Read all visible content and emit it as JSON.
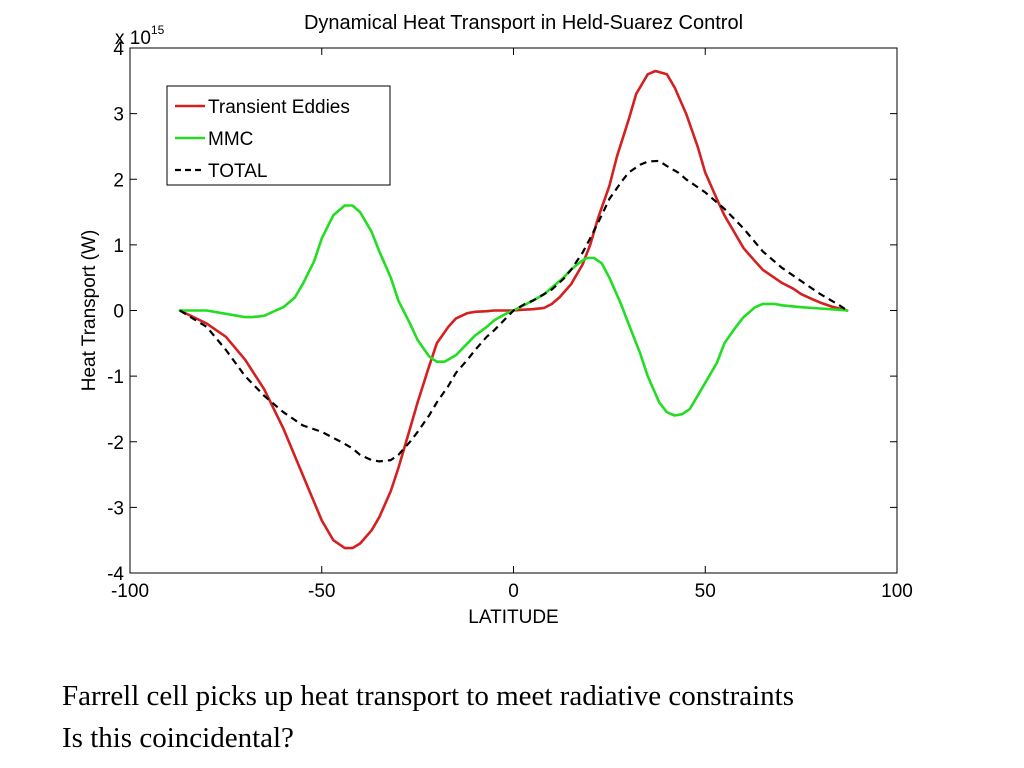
{
  "chart_data": {
    "type": "line",
    "title": "Dynamical Heat Transport in Held-Suarez Control",
    "xlabel": "LATITUDE",
    "ylabel": "Heat Transport (W)",
    "y_multiplier_label": "x 10",
    "y_multiplier_exponent": "15",
    "xlim": [
      -100,
      100
    ],
    "ylim": [
      -4,
      4
    ],
    "x_ticks": [
      -100,
      -50,
      0,
      50,
      100
    ],
    "y_ticks": [
      -4,
      -3,
      -2,
      -1,
      0,
      1,
      2,
      3,
      4
    ],
    "grid": false,
    "legend_position": "top-left",
    "series": [
      {
        "name": "Transient Eddies",
        "color": "#d42020",
        "dash": "solid",
        "x": [
          -87,
          -80,
          -75,
          -70,
          -65,
          -60,
          -55,
          -50,
          -47,
          -44,
          -42,
          -40,
          -37,
          -35,
          -32,
          -30,
          -27,
          -25,
          -22,
          -20,
          -17,
          -15,
          -12,
          -10,
          -7,
          -5,
          -2,
          0,
          2,
          5,
          8,
          10,
          12,
          15,
          18,
          20,
          22,
          25,
          27,
          30,
          32,
          35,
          37,
          40,
          42,
          45,
          48,
          50,
          53,
          55,
          58,
          60,
          63,
          65,
          68,
          70,
          73,
          75,
          78,
          80,
          83,
          85,
          87
        ],
        "y": [
          0,
          -0.2,
          -0.4,
          -0.75,
          -1.2,
          -1.8,
          -2.5,
          -3.2,
          -3.5,
          -3.62,
          -3.62,
          -3.55,
          -3.35,
          -3.15,
          -2.75,
          -2.4,
          -1.8,
          -1.4,
          -0.85,
          -0.5,
          -0.25,
          -0.12,
          -0.04,
          -0.02,
          -0.01,
          0,
          0,
          0,
          0.01,
          0.02,
          0.04,
          0.1,
          0.2,
          0.4,
          0.7,
          1.0,
          1.4,
          1.9,
          2.35,
          2.9,
          3.3,
          3.6,
          3.65,
          3.6,
          3.4,
          3.0,
          2.5,
          2.1,
          1.7,
          1.45,
          1.15,
          0.95,
          0.75,
          0.62,
          0.5,
          0.42,
          0.33,
          0.25,
          0.17,
          0.12,
          0.06,
          0.03,
          0
        ]
      },
      {
        "name": "MMC",
        "color": "#22dd22",
        "dash": "solid",
        "x": [
          -87,
          -80,
          -75,
          -72,
          -70,
          -68,
          -65,
          -62,
          -60,
          -57,
          -55,
          -52,
          -50,
          -47,
          -44,
          -42,
          -40,
          -37,
          -35,
          -32,
          -30,
          -27,
          -25,
          -22,
          -20,
          -18,
          -15,
          -12,
          -10,
          -7,
          -5,
          -2,
          0,
          2,
          5,
          8,
          10,
          13,
          15,
          17,
          19,
          21,
          23,
          25,
          28,
          30,
          33,
          35,
          38,
          40,
          42,
          44,
          46,
          48,
          50,
          53,
          55,
          58,
          60,
          63,
          65,
          68,
          70,
          75,
          80,
          85,
          87
        ],
        "y": [
          0,
          0,
          -0.05,
          -0.08,
          -0.1,
          -0.1,
          -0.08,
          0,
          0.05,
          0.2,
          0.4,
          0.75,
          1.1,
          1.45,
          1.6,
          1.6,
          1.5,
          1.2,
          0.9,
          0.5,
          0.15,
          -0.2,
          -0.45,
          -0.7,
          -0.78,
          -0.78,
          -0.68,
          -0.5,
          -0.38,
          -0.25,
          -0.15,
          -0.05,
          0,
          0.06,
          0.15,
          0.25,
          0.35,
          0.5,
          0.62,
          0.72,
          0.8,
          0.8,
          0.72,
          0.5,
          0.1,
          -0.2,
          -0.65,
          -1.0,
          -1.4,
          -1.55,
          -1.6,
          -1.58,
          -1.5,
          -1.3,
          -1.1,
          -0.8,
          -0.5,
          -0.25,
          -0.1,
          0.05,
          0.1,
          0.1,
          0.08,
          0.05,
          0.03,
          0.01,
          0
        ]
      },
      {
        "name": "TOTAL",
        "color": "#000000",
        "dash": "dashed",
        "x": [
          -87,
          -80,
          -75,
          -70,
          -65,
          -60,
          -55,
          -50,
          -45,
          -42,
          -40,
          -37,
          -35,
          -32,
          -30,
          -27,
          -25,
          -22,
          -20,
          -17,
          -15,
          -12,
          -10,
          -7,
          -5,
          -2,
          0,
          3,
          5,
          8,
          10,
          13,
          15,
          18,
          20,
          23,
          25,
          28,
          30,
          33,
          35,
          38,
          40,
          43,
          45,
          50,
          55,
          60,
          65,
          70,
          75,
          80,
          85,
          87
        ],
        "y": [
          0,
          -0.25,
          -0.6,
          -1.0,
          -1.3,
          -1.55,
          -1.75,
          -1.85,
          -2.0,
          -2.1,
          -2.2,
          -2.28,
          -2.3,
          -2.28,
          -2.2,
          -2.0,
          -1.85,
          -1.6,
          -1.4,
          -1.15,
          -0.95,
          -0.75,
          -0.6,
          -0.4,
          -0.3,
          -0.12,
          0,
          0.1,
          0.15,
          0.25,
          0.32,
          0.48,
          0.62,
          0.88,
          1.1,
          1.45,
          1.7,
          1.95,
          2.1,
          2.22,
          2.27,
          2.28,
          2.2,
          2.1,
          2.0,
          1.8,
          1.55,
          1.25,
          0.9,
          0.65,
          0.45,
          0.25,
          0.08,
          0
        ]
      }
    ]
  },
  "captions": {
    "line1": "Farrell cell picks up heat transport to meet radiative constraints",
    "line2": "Is this coincidental?"
  }
}
